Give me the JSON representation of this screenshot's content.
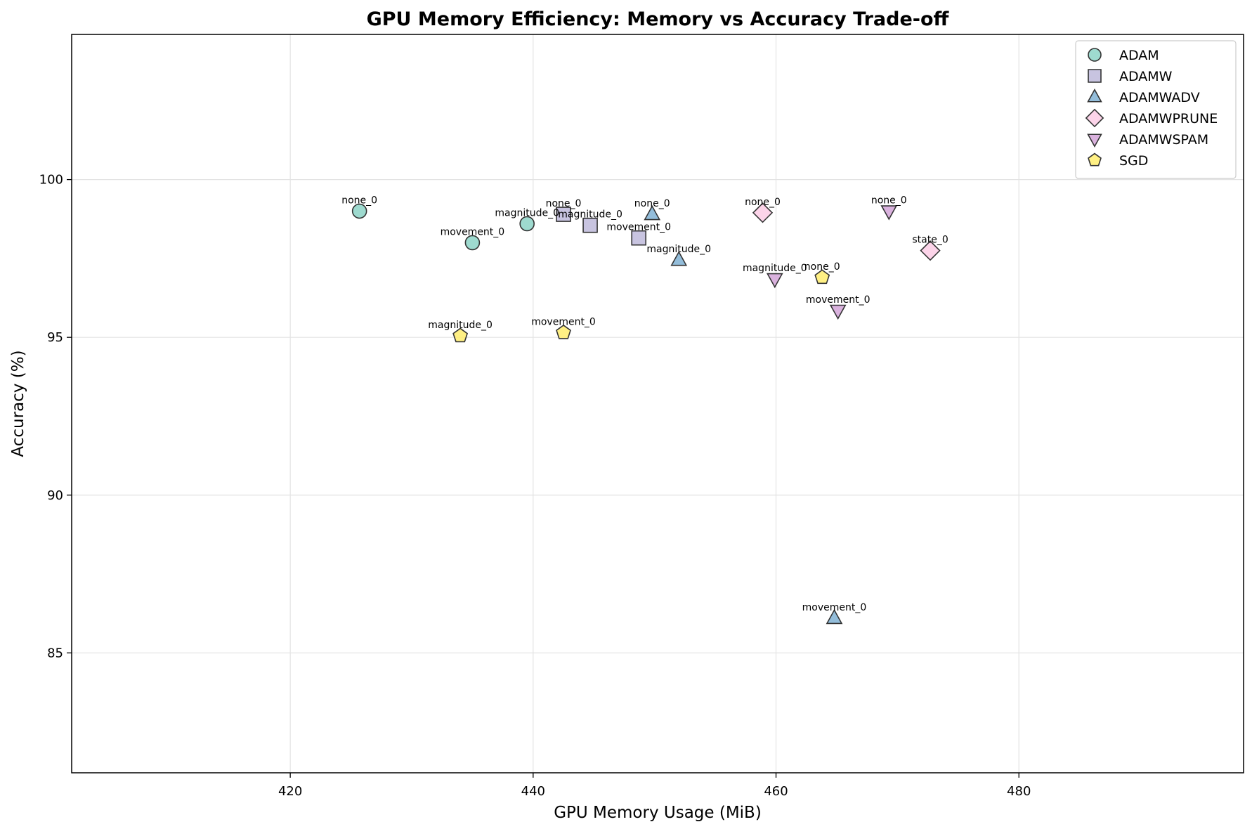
{
  "chart_data": {
    "type": "scatter",
    "title": "GPU Memory Efficiency: Memory vs Accuracy Trade-off",
    "xlabel": "GPU Memory Usage (MiB)",
    "ylabel": "Accuracy (%)",
    "xlim": [
      402,
      498.5
    ],
    "ylim": [
      81.2,
      104.6
    ],
    "xticks": [
      420,
      440,
      460,
      480
    ],
    "yticks": [
      85,
      90,
      95,
      100
    ],
    "grid": true,
    "legend_position": "top-right",
    "series": [
      {
        "name": "ADAM",
        "marker": "circle",
        "color": "#8dd3c7",
        "points": [
          {
            "x": 425.7,
            "y": 99.0,
            "label": "none_0"
          },
          {
            "x": 435.0,
            "y": 98.0,
            "label": "movement_0"
          },
          {
            "x": 439.5,
            "y": 98.6,
            "label": "magnitude_0"
          }
        ]
      },
      {
        "name": "ADAMW",
        "marker": "square",
        "color": "#bebada",
        "points": [
          {
            "x": 442.5,
            "y": 98.9,
            "label": "none_0"
          },
          {
            "x": 444.7,
            "y": 98.55,
            "label": "magnitude_0"
          },
          {
            "x": 448.7,
            "y": 98.15,
            "label": "movement_0"
          }
        ]
      },
      {
        "name": "ADAMWADV",
        "marker": "triangle-up",
        "color": "#80b1d3",
        "points": [
          {
            "x": 449.8,
            "y": 98.9,
            "label": "none_0"
          },
          {
            "x": 452.0,
            "y": 97.45,
            "label": "magnitude_0"
          },
          {
            "x": 464.8,
            "y": 86.1,
            "label": "movement_0"
          }
        ]
      },
      {
        "name": "ADAMWPRUNE",
        "marker": "diamond",
        "color": "#fccde5",
        "points": [
          {
            "x": 458.9,
            "y": 98.95,
            "label": "none_0"
          },
          {
            "x": 472.7,
            "y": 97.75,
            "label": "state_0"
          }
        ]
      },
      {
        "name": "ADAMWSPAM",
        "marker": "triangle-down",
        "color": "#d4a5d8",
        "points": [
          {
            "x": 469.3,
            "y": 99.0,
            "label": "none_0"
          },
          {
            "x": 459.9,
            "y": 96.85,
            "label": "magnitude_0"
          },
          {
            "x": 465.1,
            "y": 95.85,
            "label": "movement_0"
          }
        ]
      },
      {
        "name": "SGD",
        "marker": "pentagon",
        "color": "#ffed6f",
        "points": [
          {
            "x": 463.8,
            "y": 96.9,
            "label": "none_0"
          },
          {
            "x": 434.0,
            "y": 95.05,
            "label": "magnitude_0"
          },
          {
            "x": 442.5,
            "y": 95.15,
            "label": "movement_0"
          }
        ]
      }
    ]
  }
}
